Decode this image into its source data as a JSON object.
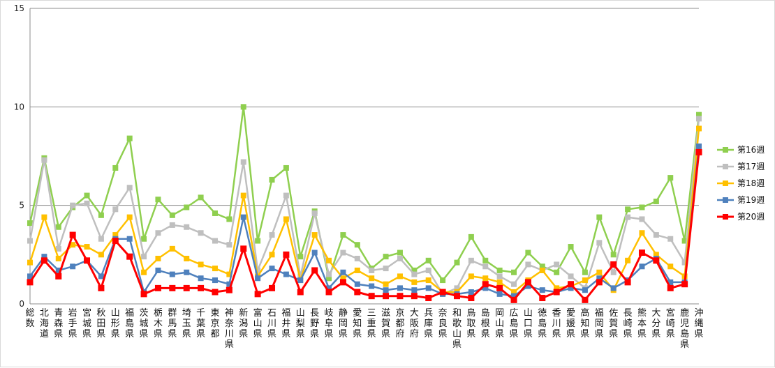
{
  "chart_data": {
    "type": "line",
    "ylim": [
      0,
      15
    ],
    "yticks": [
      0,
      5,
      10,
      15
    ],
    "grid": true,
    "legend_position": "right",
    "categories": [
      "総数",
      "北海道",
      "青森県",
      "岩手県",
      "宮城県",
      "秋田県",
      "山形県",
      "福島県",
      "茨城県",
      "栃木県",
      "群馬県",
      "埼玉県",
      "千葉県",
      "東京都",
      "神奈川県",
      "新潟県",
      "富山県",
      "石川県",
      "福井県",
      "山梨県",
      "長野県",
      "岐阜県",
      "静岡県",
      "愛知県",
      "三重県",
      "滋賀県",
      "京都府",
      "大阪府",
      "兵庫県",
      "奈良県",
      "和歌山県",
      "鳥取県",
      "島根県",
      "岡山県",
      "広島県",
      "山口県",
      "徳島県",
      "香川県",
      "愛媛県",
      "高知県",
      "福岡県",
      "佐賀県",
      "長崎県",
      "熊本県",
      "大分県",
      "宮崎県",
      "鹿児島県",
      "沖縄県"
    ],
    "series": [
      {
        "name": "第16週",
        "color": "#8fcf4f",
        "values": [
          4.1,
          7.4,
          3.9,
          4.9,
          5.5,
          4.5,
          6.9,
          8.4,
          3.3,
          5.3,
          4.5,
          4.9,
          5.4,
          4.6,
          4.3,
          10.0,
          3.2,
          6.3,
          6.9,
          2.4,
          4.7,
          1.3,
          3.5,
          3.0,
          1.8,
          2.4,
          2.6,
          1.7,
          2.2,
          1.2,
          2.1,
          3.4,
          2.2,
          1.7,
          1.6,
          2.6,
          1.9,
          1.6,
          2.9,
          1.6,
          4.4,
          2.5,
          4.8,
          4.9,
          5.2,
          6.4,
          3.2,
          9.6
        ]
      },
      {
        "name": "第17週",
        "color": "#bfbfbf",
        "values": [
          3.2,
          7.3,
          2.8,
          5.0,
          5.1,
          3.3,
          4.8,
          5.9,
          2.4,
          3.6,
          4.0,
          3.9,
          3.6,
          3.2,
          3.0,
          7.2,
          1.7,
          3.5,
          5.5,
          1.4,
          4.6,
          1.5,
          2.6,
          2.3,
          1.7,
          1.8,
          2.3,
          1.5,
          1.7,
          0.5,
          0.8,
          2.2,
          1.9,
          1.4,
          1.0,
          2.0,
          1.7,
          2.0,
          1.4,
          0.8,
          3.1,
          1.6,
          4.4,
          4.3,
          3.5,
          3.3,
          2.1,
          9.4
        ]
      },
      {
        "name": "第18週",
        "color": "#ffc000",
        "values": [
          2.1,
          4.4,
          2.3,
          3.0,
          2.9,
          2.5,
          3.5,
          4.4,
          1.6,
          2.3,
          2.8,
          2.3,
          2.0,
          1.8,
          1.5,
          5.5,
          1.4,
          2.5,
          4.3,
          1.2,
          3.5,
          2.2,
          1.3,
          1.7,
          1.3,
          1.0,
          1.4,
          1.1,
          1.2,
          0.6,
          0.6,
          1.4,
          1.3,
          1.1,
          0.6,
          1.2,
          1.7,
          0.8,
          0.9,
          1.2,
          1.6,
          0.7,
          2.2,
          3.6,
          2.5,
          1.9,
          1.4,
          8.9
        ]
      },
      {
        "name": "第19週",
        "color": "#4f81bd",
        "values": [
          1.4,
          2.4,
          1.7,
          1.9,
          2.2,
          1.4,
          3.3,
          3.3,
          0.6,
          1.7,
          1.5,
          1.6,
          1.3,
          1.2,
          1.0,
          4.4,
          1.3,
          1.8,
          1.5,
          1.2,
          2.6,
          0.8,
          1.6,
          1.0,
          0.9,
          0.7,
          0.8,
          0.7,
          0.8,
          0.5,
          0.5,
          0.6,
          0.8,
          0.5,
          0.4,
          0.9,
          0.7,
          0.6,
          0.8,
          0.7,
          1.3,
          0.8,
          1.2,
          1.9,
          2.3,
          1.1,
          1.1,
          8.0
        ]
      },
      {
        "name": "第20週",
        "color": "#ff0000",
        "values": [
          1.1,
          2.2,
          1.4,
          3.5,
          2.2,
          0.8,
          3.2,
          2.4,
          0.5,
          0.8,
          0.8,
          0.8,
          0.8,
          0.6,
          0.7,
          2.8,
          0.5,
          0.8,
          2.5,
          0.6,
          1.7,
          0.6,
          1.1,
          0.6,
          0.4,
          0.4,
          0.4,
          0.4,
          0.3,
          0.6,
          0.4,
          0.3,
          1.0,
          0.8,
          0.2,
          1.1,
          0.3,
          0.6,
          1.0,
          0.2,
          1.1,
          2.0,
          1.1,
          2.6,
          2.2,
          0.8,
          1.0,
          7.7
        ]
      }
    ]
  }
}
